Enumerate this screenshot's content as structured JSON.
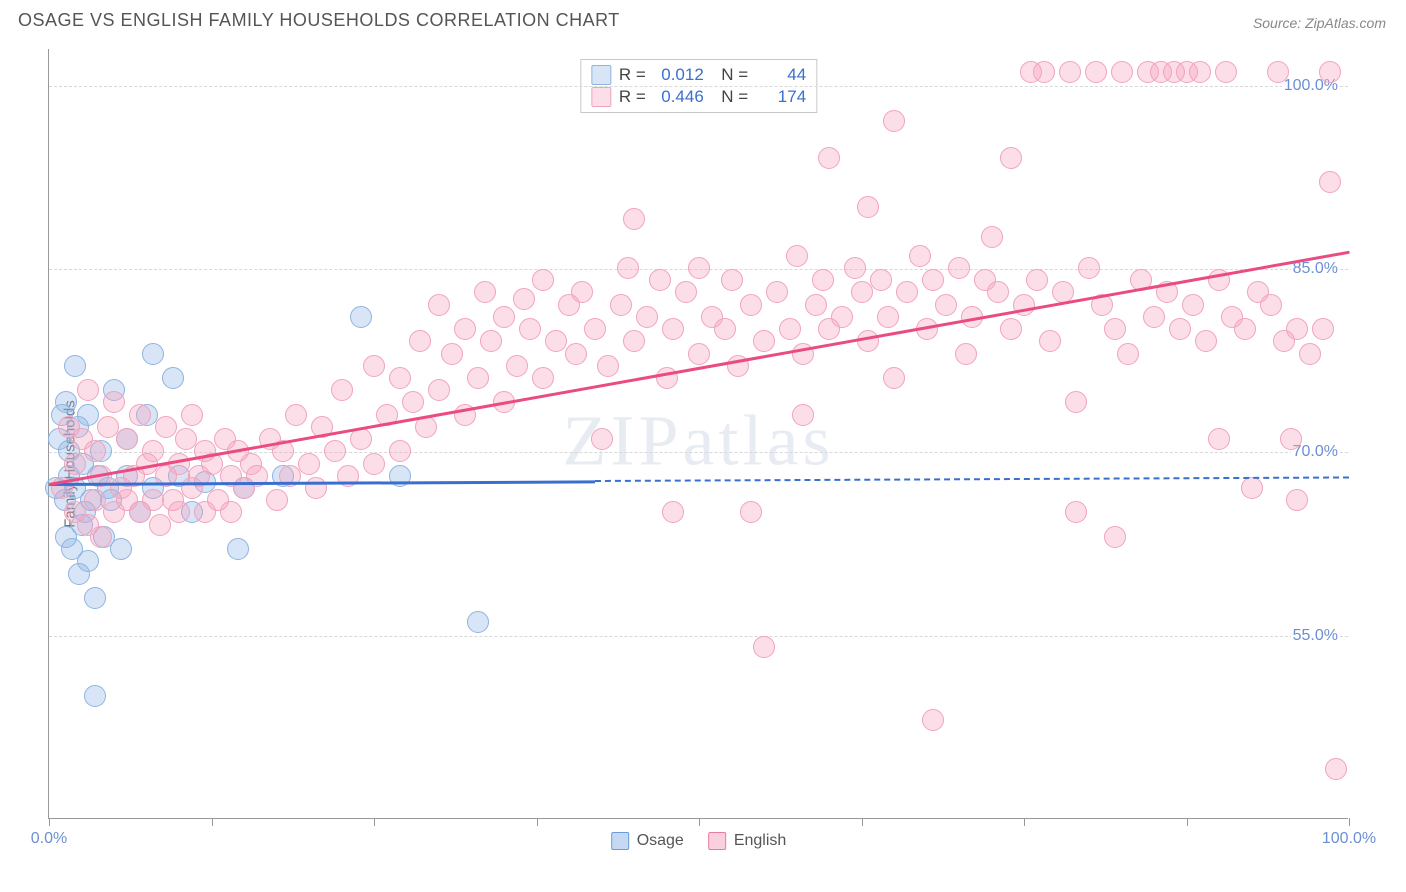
{
  "title": "OSAGE VS ENGLISH FAMILY HOUSEHOLDS CORRELATION CHART",
  "source": "Source: ZipAtlas.com",
  "ylabel": "Family Households",
  "watermark": "ZIPatlas",
  "chart": {
    "type": "scatter",
    "background_color": "#ffffff",
    "grid_color": "#d8d8d8",
    "axis_color": "#999999",
    "label_color": "#6b8fd4",
    "x_range": [
      0,
      100
    ],
    "y_range": [
      40,
      103
    ],
    "y_ticks": [
      55.0,
      70.0,
      85.0,
      100.0
    ],
    "y_tick_labels": [
      "55.0%",
      "70.0%",
      "85.0%",
      "100.0%"
    ],
    "x_ticks": [
      0,
      12.5,
      25,
      37.5,
      50,
      62.5,
      75,
      87.5,
      100
    ],
    "x_tick_labels": {
      "0": "0.0%",
      "100": "100.0%"
    },
    "title_fontsize": 18,
    "label_fontsize": 15,
    "tick_fontsize": 16,
    "marker_radius": 11,
    "series": [
      {
        "name": "Osage",
        "fill": "rgba(140,180,230,0.35)",
        "stroke": "#8fb4e0",
        "line_color": "#3b6fcf",
        "R": "0.012",
        "N": "44",
        "regression": {
          "x0": 0,
          "y0": 67.5,
          "x1": 100,
          "y1": 68.0,
          "solid_until_x": 42
        },
        "points": [
          [
            0.5,
            67
          ],
          [
            0.8,
            71
          ],
          [
            1.0,
            73
          ],
          [
            1.2,
            66
          ],
          [
            1.3,
            74
          ],
          [
            1.3,
            63
          ],
          [
            1.5,
            70
          ],
          [
            1.5,
            68
          ],
          [
            1.8,
            62
          ],
          [
            2.0,
            77
          ],
          [
            2.0,
            67
          ],
          [
            2.2,
            72
          ],
          [
            2.3,
            60
          ],
          [
            2.5,
            64
          ],
          [
            2.6,
            69
          ],
          [
            2.8,
            65
          ],
          [
            3.0,
            73
          ],
          [
            3.0,
            61
          ],
          [
            3.2,
            66
          ],
          [
            3.5,
            58
          ],
          [
            3.5,
            50
          ],
          [
            3.8,
            68
          ],
          [
            4.0,
            70
          ],
          [
            4.2,
            63
          ],
          [
            4.5,
            67
          ],
          [
            4.8,
            66
          ],
          [
            5.0,
            75
          ],
          [
            5.5,
            62
          ],
          [
            6.0,
            71
          ],
          [
            6.0,
            68
          ],
          [
            7.0,
            65
          ],
          [
            7.5,
            73
          ],
          [
            8.0,
            67
          ],
          [
            8.0,
            78
          ],
          [
            9.5,
            76
          ],
          [
            10.0,
            68
          ],
          [
            11.0,
            65
          ],
          [
            12.0,
            67.5
          ],
          [
            14.5,
            62
          ],
          [
            15.0,
            67
          ],
          [
            18.0,
            68
          ],
          [
            24.0,
            81
          ],
          [
            27.0,
            68
          ],
          [
            33.0,
            56
          ]
        ]
      },
      {
        "name": "English",
        "fill": "rgba(245,160,190,0.35)",
        "stroke": "#f1a3bd",
        "line_color": "#e94b82",
        "R": "0.446",
        "N": "174",
        "regression": {
          "x0": 0,
          "y0": 67.5,
          "x1": 100,
          "y1": 86.5,
          "solid_until_x": 100
        },
        "points": [
          [
            1,
            67
          ],
          [
            1.5,
            72
          ],
          [
            2,
            65
          ],
          [
            2,
            69
          ],
          [
            2.5,
            71
          ],
          [
            3,
            64
          ],
          [
            3,
            75
          ],
          [
            3.5,
            66
          ],
          [
            3.5,
            70
          ],
          [
            4,
            68
          ],
          [
            4,
            63
          ],
          [
            4.5,
            72
          ],
          [
            5,
            65
          ],
          [
            5,
            74
          ],
          [
            5.5,
            67
          ],
          [
            6,
            66
          ],
          [
            6,
            71
          ],
          [
            6.5,
            68
          ],
          [
            7,
            65
          ],
          [
            7,
            73
          ],
          [
            7.5,
            69
          ],
          [
            8,
            66
          ],
          [
            8,
            70
          ],
          [
            8.5,
            64
          ],
          [
            9,
            68
          ],
          [
            9,
            72
          ],
          [
            9.5,
            66
          ],
          [
            10,
            69
          ],
          [
            10,
            65
          ],
          [
            10.5,
            71
          ],
          [
            11,
            67
          ],
          [
            11,
            73
          ],
          [
            11.5,
            68
          ],
          [
            12,
            65
          ],
          [
            12,
            70
          ],
          [
            12.5,
            69
          ],
          [
            13,
            66
          ],
          [
            13.5,
            71
          ],
          [
            14,
            68
          ],
          [
            14,
            65
          ],
          [
            14.5,
            70
          ],
          [
            15,
            67
          ],
          [
            15.5,
            69
          ],
          [
            16,
            68
          ],
          [
            17,
            71
          ],
          [
            17.5,
            66
          ],
          [
            18,
            70
          ],
          [
            18.5,
            68
          ],
          [
            19,
            73
          ],
          [
            20,
            69
          ],
          [
            20.5,
            67
          ],
          [
            21,
            72
          ],
          [
            22,
            70
          ],
          [
            22.5,
            75
          ],
          [
            23,
            68
          ],
          [
            24,
            71
          ],
          [
            25,
            69
          ],
          [
            25,
            77
          ],
          [
            26,
            73
          ],
          [
            27,
            70
          ],
          [
            27,
            76
          ],
          [
            28,
            74
          ],
          [
            28.5,
            79
          ],
          [
            29,
            72
          ],
          [
            30,
            75
          ],
          [
            30,
            82
          ],
          [
            31,
            78
          ],
          [
            32,
            73
          ],
          [
            32,
            80
          ],
          [
            33,
            76
          ],
          [
            33.5,
            83
          ],
          [
            34,
            79
          ],
          [
            35,
            74
          ],
          [
            35,
            81
          ],
          [
            36,
            77
          ],
          [
            36.5,
            82.5
          ],
          [
            37,
            80
          ],
          [
            38,
            76
          ],
          [
            38,
            84
          ],
          [
            39,
            79
          ],
          [
            40,
            82
          ],
          [
            40.5,
            78
          ],
          [
            41,
            83
          ],
          [
            42,
            80
          ],
          [
            42.5,
            71
          ],
          [
            43,
            77
          ],
          [
            44,
            82
          ],
          [
            44.5,
            85
          ],
          [
            45,
            89
          ],
          [
            45,
            79
          ],
          [
            46,
            81
          ],
          [
            47,
            84
          ],
          [
            47.5,
            76
          ],
          [
            48,
            80
          ],
          [
            48,
            65
          ],
          [
            49,
            83
          ],
          [
            50,
            78
          ],
          [
            50,
            85
          ],
          [
            51,
            81
          ],
          [
            52,
            80
          ],
          [
            52.5,
            84
          ],
          [
            53,
            77
          ],
          [
            54,
            82
          ],
          [
            54,
            65
          ],
          [
            55,
            54
          ],
          [
            55,
            79
          ],
          [
            56,
            83
          ],
          [
            57,
            80
          ],
          [
            57.5,
            86
          ],
          [
            58,
            78
          ],
          [
            58,
            73
          ],
          [
            59,
            82
          ],
          [
            59.5,
            84
          ],
          [
            60,
            80
          ],
          [
            60,
            94
          ],
          [
            61,
            81
          ],
          [
            62,
            85
          ],
          [
            62.5,
            83
          ],
          [
            63,
            79
          ],
          [
            63,
            90
          ],
          [
            64,
            84
          ],
          [
            64.5,
            81
          ],
          [
            65,
            76
          ],
          [
            65,
            97
          ],
          [
            66,
            83
          ],
          [
            67,
            86
          ],
          [
            67.5,
            80
          ],
          [
            68,
            84
          ],
          [
            68,
            48
          ],
          [
            69,
            82
          ],
          [
            70,
            85
          ],
          [
            70.5,
            78
          ],
          [
            71,
            81
          ],
          [
            72,
            84
          ],
          [
            72.5,
            87.5
          ],
          [
            73,
            83
          ],
          [
            74,
            80
          ],
          [
            74,
            94
          ],
          [
            75,
            82
          ],
          [
            75.5,
            101
          ],
          [
            76,
            84
          ],
          [
            76.5,
            101
          ],
          [
            77,
            79
          ],
          [
            78,
            83
          ],
          [
            78.5,
            101
          ],
          [
            79,
            74
          ],
          [
            79,
            65
          ],
          [
            80,
            85
          ],
          [
            80.5,
            101
          ],
          [
            81,
            82
          ],
          [
            82,
            80
          ],
          [
            82,
            63
          ],
          [
            82.5,
            101
          ],
          [
            83,
            78
          ],
          [
            84,
            84
          ],
          [
            84.5,
            101
          ],
          [
            85,
            81
          ],
          [
            85.5,
            101
          ],
          [
            86,
            83
          ],
          [
            86.5,
            101
          ],
          [
            87,
            80
          ],
          [
            87.5,
            101
          ],
          [
            88,
            82
          ],
          [
            88.5,
            101
          ],
          [
            89,
            79
          ],
          [
            90,
            84
          ],
          [
            90,
            71
          ],
          [
            90.5,
            101
          ],
          [
            91,
            81
          ],
          [
            92,
            80
          ],
          [
            92.5,
            67
          ],
          [
            93,
            83
          ],
          [
            94,
            82
          ],
          [
            94.5,
            101
          ],
          [
            95,
            79
          ],
          [
            95.5,
            71
          ],
          [
            96,
            80
          ],
          [
            96,
            66
          ],
          [
            97,
            78
          ],
          [
            98,
            80
          ],
          [
            98.5,
            101
          ],
          [
            98.5,
            92
          ],
          [
            99,
            44
          ]
        ]
      }
    ]
  },
  "legend_bottom": [
    {
      "label": "Osage",
      "fill": "rgba(140,180,230,0.5)",
      "stroke": "#6b9bd8"
    },
    {
      "label": "English",
      "fill": "rgba(245,160,190,0.5)",
      "stroke": "#e87ba3"
    }
  ]
}
